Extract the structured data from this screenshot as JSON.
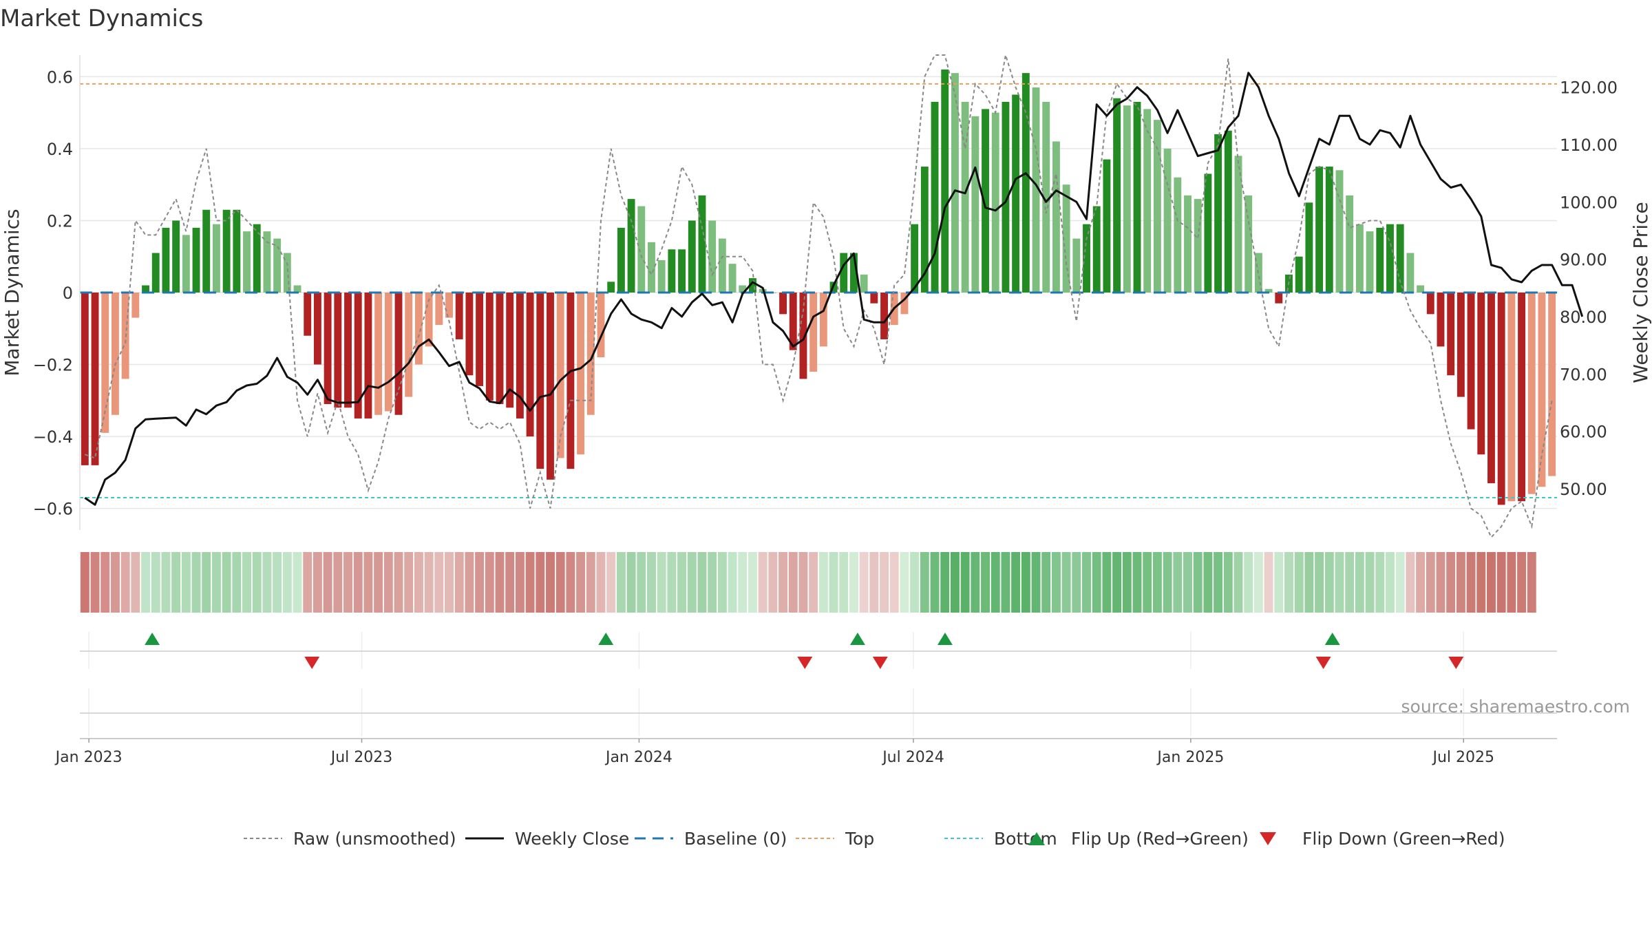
{
  "chart_data": {
    "type": "bar",
    "title": "Market Dynamics",
    "source": "source: sharemaestro.com",
    "left_axis": {
      "label": "Market Dynamics",
      "ylim": [
        -0.66,
        0.66
      ],
      "ticks": [
        -0.6,
        -0.4,
        -0.2,
        0,
        0.2,
        0.4,
        0.6
      ],
      "tick_labels": [
        "−0.6",
        "−0.4",
        "−0.2",
        "0",
        "0.2",
        "0.4",
        "0.6"
      ]
    },
    "right_axis": {
      "label": "Weekly Close Price",
      "ylim": [
        42.8,
        125.6
      ],
      "ticks": [
        50,
        60,
        70,
        80,
        90,
        100,
        110,
        120
      ],
      "tick_labels": [
        "50.00",
        "60.00",
        "70.00",
        "80.00",
        "90.00",
        "100.00",
        "110.00",
        "120.00"
      ]
    },
    "x_axis": {
      "start": "2022-12-26",
      "end": "2025-09-01",
      "ticks": [
        {
          "date": "2023-01-01",
          "label": "Jan 2023"
        },
        {
          "date": "2023-07-01",
          "label": "Jul 2023"
        },
        {
          "date": "2024-01-01",
          "label": "Jan 2024"
        },
        {
          "date": "2024-07-01",
          "label": "Jul 2024"
        },
        {
          "date": "2025-01-01",
          "label": "Jan 2025"
        },
        {
          "date": "2025-07-01",
          "label": "Jul 2025"
        }
      ]
    },
    "reference_lines": {
      "top": 0.58,
      "bottom": -0.57,
      "baseline": 0
    },
    "colors": {
      "bar_dark_green": "#228b22",
      "bar_light_green": "#7dbd7d",
      "bar_dark_red": "#b22222",
      "bar_light_red": "#e9967a",
      "close": "#111111",
      "raw": "#888888",
      "baseline": "#1f77b4",
      "top": "#e5a05c",
      "bottom": "#3cc8c8",
      "flip_up": "#1a9641",
      "flip_down": "#d62728"
    },
    "dynamics": [
      -0.48,
      -0.48,
      -0.39,
      -0.34,
      -0.24,
      -0.07,
      0.02,
      0.11,
      0.18,
      0.2,
      0.16,
      0.18,
      0.23,
      0.19,
      0.23,
      0.23,
      0.17,
      0.19,
      0.17,
      0.15,
      0.11,
      0.02,
      -0.12,
      -0.2,
      -0.31,
      -0.32,
      -0.32,
      -0.35,
      -0.35,
      -0.34,
      -0.33,
      -0.34,
      -0.29,
      -0.2,
      -0.15,
      -0.09,
      -0.07,
      -0.13,
      -0.23,
      -0.26,
      -0.3,
      -0.31,
      -0.32,
      -0.35,
      -0.4,
      -0.49,
      -0.52,
      -0.46,
      -0.49,
      -0.45,
      -0.34,
      -0.18,
      0.03,
      0.18,
      0.26,
      0.24,
      0.14,
      0.09,
      0.12,
      0.12,
      0.2,
      0.27,
      0.2,
      0.15,
      0.08,
      0.02,
      0.04,
      0.01,
      0,
      -0.06,
      -0.16,
      -0.24,
      -0.22,
      -0.15,
      0.03,
      0.11,
      0.11,
      0.05,
      -0.03,
      -0.13,
      -0.09,
      -0.06,
      0.19,
      0.35,
      0.53,
      0.62,
      0.61,
      0.53,
      0.49,
      0.51,
      0.5,
      0.53,
      0.55,
      0.61,
      0.57,
      0.53,
      0.42,
      0.3,
      0.15,
      0.19,
      0.24,
      0.37,
      0.54,
      0.52,
      0.53,
      0.51,
      0.48,
      0.4,
      0.32,
      0.27,
      0.26,
      0.33,
      0.44,
      0.45,
      0.38,
      0.27,
      0.11,
      0.01,
      -0.03,
      0.05,
      0.1,
      0.25,
      0.35,
      0.35,
      0.34,
      0.27,
      0.19,
      0.17,
      0.18,
      0.19,
      0.19,
      0.11,
      0.02,
      -0.06,
      -0.15,
      -0.23,
      -0.29,
      -0.38,
      -0.45,
      -0.53,
      -0.59,
      -0.58,
      -0.58,
      -0.56,
      -0.54,
      -0.51
    ],
    "raw": [
      -0.45,
      -0.46,
      -0.33,
      -0.2,
      -0.14,
      0.2,
      0.16,
      0.16,
      0.21,
      0.26,
      0.17,
      0.31,
      0.4,
      0.2,
      0.2,
      0.23,
      0.2,
      0.17,
      0.14,
      0.13,
      0.08,
      -0.3,
      -0.4,
      -0.28,
      -0.39,
      -0.3,
      -0.4,
      -0.45,
      -0.55,
      -0.47,
      -0.35,
      -0.27,
      -0.19,
      -0.12,
      -0.02,
      0.02,
      -0.08,
      -0.22,
      -0.36,
      -0.38,
      -0.36,
      -0.38,
      -0.36,
      -0.42,
      -0.6,
      -0.5,
      -0.6,
      -0.4,
      -0.3,
      -0.3,
      -0.3,
      0.2,
      0.4,
      0.27,
      0.2,
      0.1,
      0.05,
      0.12,
      0.2,
      0.35,
      0.3,
      0.18,
      0.05,
      0.1,
      0.1,
      0.1,
      0.06,
      -0.2,
      -0.2,
      -0.3,
      -0.2,
      -0.05,
      0.25,
      0.21,
      0.1,
      -0.1,
      -0.15,
      -0.05,
      -0.1,
      -0.2,
      0.02,
      0.05,
      0.3,
      0.6,
      0.66,
      0.66,
      0.55,
      0.4,
      0.58,
      0.55,
      0.5,
      0.66,
      0.57,
      0.5,
      0.4,
      0.22,
      0.33,
      0.08,
      -0.08,
      0.15,
      0.24,
      0.5,
      0.58,
      0.54,
      0.52,
      0.45,
      0.4,
      0.3,
      0.2,
      0.18,
      0.15,
      0.36,
      0.41,
      0.65,
      0.36,
      0.2,
      0.05,
      -0.1,
      -0.15,
      0.03,
      0.15,
      0.33,
      0.35,
      0.34,
      0.26,
      0.18,
      0.19,
      0.2,
      0.2,
      0.14,
      0.03,
      -0.05,
      -0.1,
      -0.14,
      -0.3,
      -0.42,
      -0.5,
      -0.6,
      -0.62,
      -0.68,
      -0.65,
      -0.6,
      -0.58,
      -0.65,
      -0.45,
      -0.3
    ],
    "close": [
      48.4,
      47.2,
      51.6,
      52.8,
      55.0,
      60.5,
      62.1,
      62.2,
      62.3,
      62.4,
      61.0,
      63.8,
      63.0,
      64.5,
      65.1,
      67.1,
      68.0,
      68.3,
      69.7,
      72.8,
      69.5,
      68.5,
      66.4,
      69.0,
      65.6,
      65.0,
      65.0,
      65.1,
      67.9,
      67.6,
      68.6,
      70.1,
      71.9,
      74.8,
      76.0,
      73.8,
      71.4,
      72.1,
      68.5,
      67.5,
      65.2,
      64.9,
      67.3,
      66.0,
      63.6,
      66.0,
      66.4,
      68.9,
      70.5,
      71.0,
      72.5,
      76.5,
      80.5,
      83.0,
      80.5,
      79.5,
      79.0,
      78.0,
      81.5,
      80.0,
      82.5,
      84.0,
      82.0,
      82.5,
      79.0,
      84.0,
      86.0,
      85.0,
      79.0,
      77.5,
      74.8,
      76.0,
      80.0,
      81.0,
      85.5,
      89.0,
      91.0,
      79.5,
      79.0,
      79.0,
      81.5,
      83.0,
      85.0,
      87.5,
      91.0,
      99.0,
      102.0,
      101.5,
      106.0,
      99.0,
      98.5,
      100.0,
      104.0,
      105.0,
      103.0,
      100.0,
      102.0,
      101.0,
      100.0,
      97.0,
      117.0,
      115.0,
      117.0,
      118.0,
      120.0,
      118.5,
      116.0,
      112.0,
      116.0,
      112.0,
      108.0,
      108.5,
      109.0,
      113.0,
      115.0,
      122.5,
      120.0,
      115.0,
      111.0,
      105.0,
      101.0,
      106.0,
      111.0,
      110.0,
      115.0,
      115.0,
      111.0,
      110.0,
      112.5,
      112.0,
      109.5,
      115.0,
      110.0,
      107.0,
      104.0,
      102.5,
      103.0,
      100.5,
      97.5,
      89.0,
      88.5,
      86.5,
      86.0,
      88.0,
      89.0,
      89.0,
      85.5,
      85.5,
      80.0
    ],
    "regime_colors": [
      "#cd7772",
      "#d0837f",
      "#d48d88",
      "#d59892",
      "#dea9a6",
      "#dfb6b2",
      "#c0e4c8",
      "#b8dfbf",
      "#b3ddba",
      "#a8d7b0",
      "#b0dbb7",
      "#a6d6ae",
      "#9fd2a7",
      "#a7d7ae",
      "#a2d4aa",
      "#a6d6ae",
      "#b0dbb7",
      "#aad8b1",
      "#b3dcba",
      "#b8dfbf",
      "#c0e4c8",
      "#c8e8ce",
      "#dca7a3",
      "#d89e99",
      "#d59894",
      "#d69c97",
      "#d89e99",
      "#d59793",
      "#d69a95",
      "#d59894",
      "#d79c98",
      "#d9a19c",
      "#dca8a4",
      "#dfb0ac",
      "#e1b6b2",
      "#e4bbb8",
      "#e2b9b5",
      "#ddaaa6",
      "#d89e99",
      "#d49591",
      "#d3928e",
      "#d08a86",
      "#d08a86",
      "#cf8883",
      "#cd7f7a",
      "#cc7c76",
      "#cb7b75",
      "#cd807b",
      "#d08885",
      "#d49590",
      "#d9a19c",
      "#e1b5b1",
      "#e8c8c5",
      "#a9d7b0",
      "#9ed2a6",
      "#a5d5ac",
      "#abd8b2",
      "#b7dfbe",
      "#b0dbb7",
      "#aad8b1",
      "#a5d5ac",
      "#9fd2a6",
      "#a5d5ac",
      "#b0dbb7",
      "#c1e5c7",
      "#cce9d1",
      "#d0ebd4",
      "#e7c6c3",
      "#e3bcb9",
      "#deaeaa",
      "#dba6a2",
      "#dcaaa6",
      "#e3bcb9",
      "#c9e8ce",
      "#bde2c4",
      "#c2e5c8",
      "#d2ecd6",
      "#ebd1cf",
      "#e6c4c1",
      "#e8c9c6",
      "#eccfcc",
      "#d3edd7",
      "#bfe3c5",
      "#81c58d",
      "#6cbb7a",
      "#5db36c",
      "#57b066",
      "#5ab269",
      "#65b773",
      "#6bba78",
      "#63b671",
      "#67b874",
      "#5db36c",
      "#5ab269",
      "#63b671",
      "#73be80",
      "#82c58e",
      "#8bca96",
      "#8bca96",
      "#82c58e",
      "#73be80",
      "#67b874",
      "#63b671",
      "#65b773",
      "#6bba78",
      "#75bf81",
      "#7ac285",
      "#81c58d",
      "#8fcb9a",
      "#8fcb9a",
      "#7ec38a",
      "#74bf80",
      "#78c184",
      "#86c791",
      "#9fd2a6",
      "#bfe3c5",
      "#d1ebd5",
      "#eacfcd",
      "#c8e8cd",
      "#b3ddba",
      "#a4d5ab",
      "#97ce9f",
      "#99cfa1",
      "#9fd2a6",
      "#a9d7b0",
      "#a7d6ae",
      "#a5d5ac",
      "#a6d6ad",
      "#b0dbb7",
      "#bfe3c5",
      "#d0ebd4",
      "#e5c2bf",
      "#ddaaa6",
      "#d69c97",
      "#d39490",
      "#d08a86",
      "#ce847f",
      "#cb7b75",
      "#c9766f",
      "#c9736d",
      "#c9746e",
      "#ca7771",
      "#cb7a74",
      "#cc7d77"
    ],
    "flip_up": [
      "2023-02-12",
      "2023-12-10",
      "2024-05-25",
      "2024-07-22",
      "2025-04-05"
    ],
    "flip_down": [
      "2023-05-29",
      "2024-04-20",
      "2024-06-09",
      "2025-03-30",
      "2025-06-26"
    ],
    "legend": [
      {
        "label": "Raw (unsmoothed)",
        "style": "raw"
      },
      {
        "label": "Weekly Close",
        "style": "close"
      },
      {
        "label": "Baseline (0)",
        "style": "baseline"
      },
      {
        "label": "Top",
        "style": "top"
      },
      {
        "label": "Bottom",
        "style": "bottom"
      },
      {
        "label": "Flip Up (Red→Green)",
        "style": "flip_up"
      },
      {
        "label": "Flip Down (Green→Red)",
        "style": "flip_down"
      }
    ]
  }
}
